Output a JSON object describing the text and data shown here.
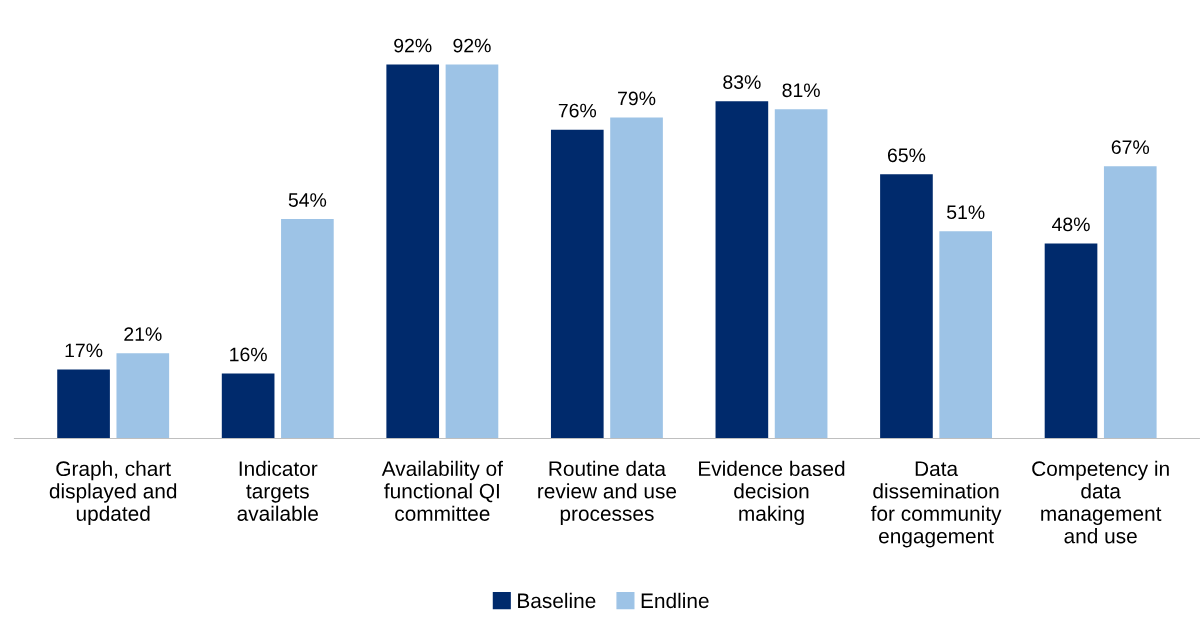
{
  "chart_data": {
    "type": "bar",
    "categories": [
      "Graph, chart\ndisplayed and\nupdated",
      "Indicator\ntargets\navailable",
      "Availability of\nfunctional QI\ncommittee",
      "Routine data\nreview and use\nprocesses",
      "Evidence based\ndecision\nmaking",
      "Data\ndissemination\nfor community\nengagement",
      "Competency in\ndata\nmanagement\nand use"
    ],
    "series": [
      {
        "name": "Baseline",
        "color": "#002a6c",
        "values": [
          17,
          16,
          92,
          76,
          83,
          65,
          48
        ],
        "value_labels": [
          "17%",
          "16%",
          "92%",
          "76%",
          "83%",
          "65%",
          "48%"
        ]
      },
      {
        "name": "Endline",
        "color": "#9dc3e6",
        "values": [
          21,
          54,
          92,
          79,
          81,
          51,
          67
        ],
        "value_labels": [
          "21%",
          "54%",
          "92%",
          "79%",
          "81%",
          "51%",
          "67%"
        ]
      }
    ],
    "legend": "bottom",
    "grid": false
  }
}
